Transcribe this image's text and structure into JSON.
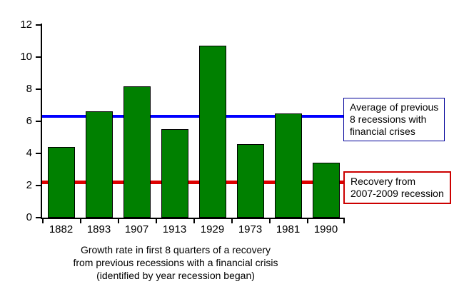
{
  "chart_data": {
    "type": "bar",
    "title": "",
    "categories": [
      "1882",
      "1893",
      "1907",
      "1913",
      "1929",
      "1973",
      "1981",
      "1990"
    ],
    "values": [
      4.4,
      6.6,
      8.2,
      5.5,
      10.7,
      4.6,
      6.5,
      3.4
    ],
    "bar_color": "#008000",
    "bar_border_color": "#000000",
    "xlabel": "",
    "ylabel": "",
    "ylim": [
      0,
      12
    ],
    "ytick_step": 2,
    "yticks": [
      0,
      2,
      4,
      6,
      8,
      10,
      12
    ],
    "grid": "off",
    "reference_lines": [
      {
        "name": "average-previous-recessions-line",
        "value": 6.3,
        "color": "#0000ff",
        "thickness": 4,
        "box_border_color": "#000099",
        "label_lines": [
          "Average of previous",
          "8 recessions with",
          "financial crises"
        ]
      },
      {
        "name": "recovery-2007-2009-line",
        "value": 2.2,
        "color": "#dd0000",
        "thickness": 5,
        "box_border_color": "#cc0000",
        "label_lines": [
          "Recovery from",
          "2007-2009 recession"
        ]
      }
    ],
    "caption_lines": [
      "Growth rate in first 8 quarters of a recovery",
      "from previous recessions with a financial crisis",
      "(identified by year recession began)"
    ]
  }
}
